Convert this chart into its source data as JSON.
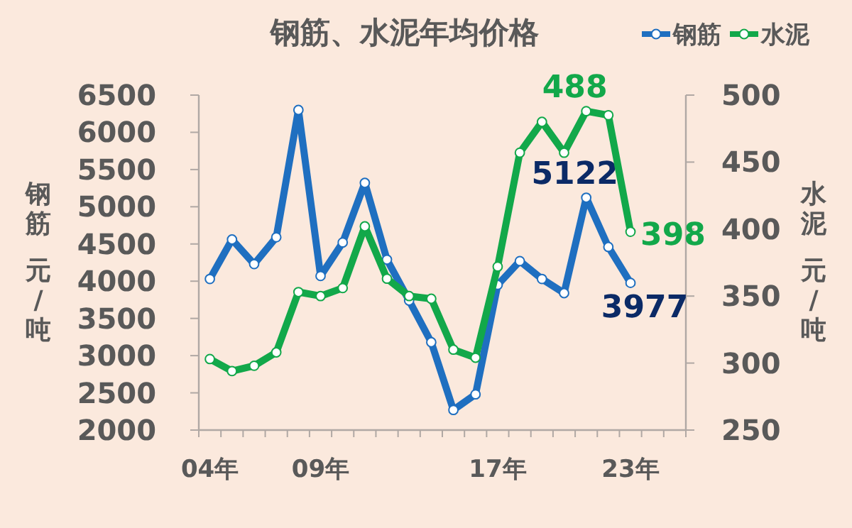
{
  "chart_data": {
    "type": "line",
    "title": "钢筋、水泥年均价格",
    "ylabel": "钢筋元/吨",
    "y2label": "水泥元/吨",
    "categories": [
      "04年",
      null,
      null,
      null,
      null,
      "09年",
      null,
      null,
      null,
      null,
      null,
      null,
      null,
      "17年",
      null,
      null,
      null,
      null,
      null,
      "23年",
      null,
      null
    ],
    "series": [
      {
        "name": "钢筋",
        "color": "#1f6fc0",
        "values": [
          4030,
          4560,
          4230,
          4590,
          6300,
          4070,
          4520,
          5320,
          4290,
          3740,
          3180,
          2270,
          2480,
          3950,
          4270,
          4030,
          3840,
          5122,
          4460,
          3977,
          null,
          null
        ],
        "value_labels": [
          null,
          null,
          null,
          null,
          null,
          null,
          null,
          null,
          null,
          null,
          null,
          null,
          null,
          null,
          null,
          null,
          null,
          "5122",
          null,
          "3977",
          null,
          null
        ]
      },
      {
        "name": "水泥",
        "color": "#12a84a",
        "axis": "y2",
        "values": [
          303,
          294,
          298,
          308,
          353,
          350,
          356,
          402,
          363,
          350,
          348,
          310,
          304,
          372,
          457,
          480,
          457,
          488,
          485,
          398,
          null,
          null
        ],
        "value_labels": [
          null,
          null,
          null,
          null,
          null,
          null,
          null,
          null,
          null,
          null,
          null,
          null,
          null,
          null,
          null,
          null,
          null,
          "488",
          null,
          "398",
          null,
          null
        ]
      }
    ],
    "ylim": [
      2000,
      6500
    ],
    "yticks": [
      2000,
      2500,
      3000,
      3500,
      4000,
      4500,
      5000,
      5500,
      6000,
      6500
    ],
    "y2lim": [
      250,
      500
    ],
    "y2ticks": [
      250,
      300,
      350,
      400,
      450,
      500
    ],
    "legend": "top right",
    "marker": "circle"
  }
}
